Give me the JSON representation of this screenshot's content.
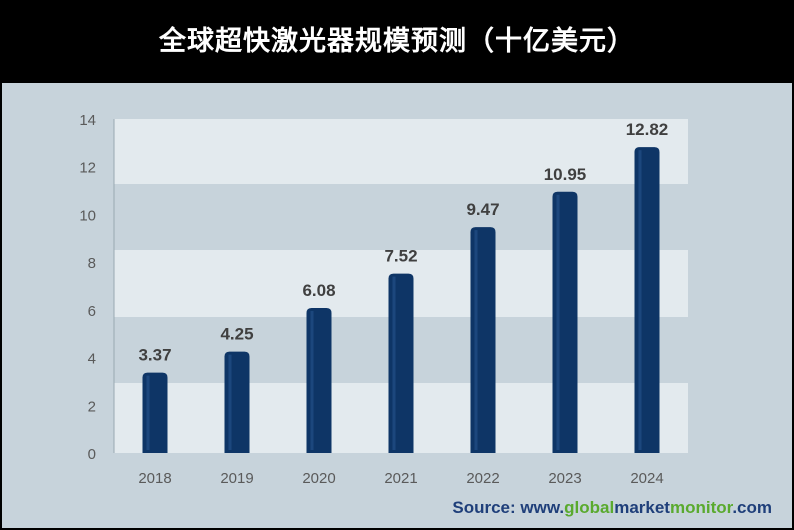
{
  "title": "全球超快激光器规模预测（十亿美元）",
  "source": {
    "prefix": "Source: www.",
    "part1": "global",
    "part2": "market",
    "part3": "monitor",
    "suffix": ".com"
  },
  "colors": {
    "bar": "#0e3566",
    "bar_highlight": "#2a5a94",
    "band_light": "#e3eaee",
    "band_dark": "#c7d3db",
    "axis_text": "#5a5a5a",
    "label_text": "#404040",
    "accent_green": "#5aaa2e",
    "accent_blue": "#1f3f7a"
  },
  "chart_data": {
    "type": "bar",
    "title": "全球超快激光器规模预测（十亿美元）",
    "categories": [
      "2018",
      "2019",
      "2020",
      "2021",
      "2022",
      "2023",
      "2024"
    ],
    "values": [
      3.37,
      4.25,
      6.08,
      7.52,
      9.47,
      10.95,
      12.82
    ],
    "value_labels": [
      "3.37",
      "4.25",
      "6.08",
      "7.52",
      "9.47",
      "10.95",
      "12.82"
    ],
    "yticks": [
      "0",
      "2",
      "4",
      "6",
      "8",
      "10",
      "12",
      "14"
    ],
    "ylim": [
      0,
      14
    ],
    "xlabel": "",
    "ylabel": "",
    "grid": true,
    "legend": "none"
  }
}
